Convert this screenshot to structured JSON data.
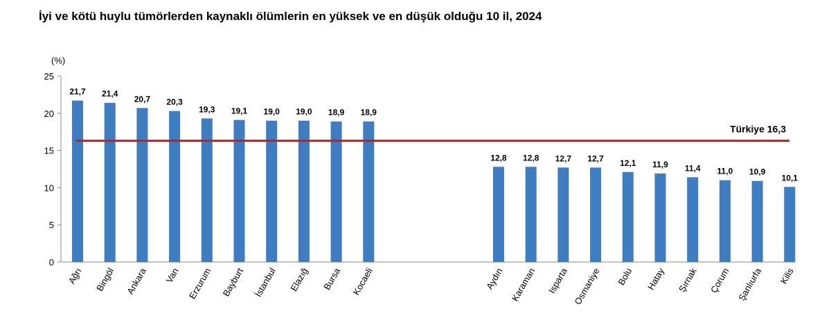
{
  "title": "İyi ve kötü huylu tümörlerden kaynaklı ölümlerin en yüksek ve en düşük olduğu 10 il, 2024",
  "colors": {
    "bar": "#3E7DC1",
    "reference_line": "#A52A2A",
    "axis": "#888888"
  },
  "chart_data": {
    "type": "bar",
    "title": "İyi ve kötü huylu tümörlerden kaynaklı ölümlerin en yüksek ve en düşük olduğu 10 il, 2024",
    "ylabel": "(%)",
    "ylim": [
      0,
      25
    ],
    "yticks": [
      0,
      5,
      10,
      15,
      20,
      25
    ],
    "grid": false,
    "groups": [
      {
        "categories": [
          "Ağrı",
          "Bingöl",
          "Ankara",
          "Van",
          "Erzurum",
          "Bayburt",
          "İstanbul",
          "Elazığ",
          "Bursa",
          "Kocaeli"
        ],
        "values": [
          21.7,
          21.4,
          20.7,
          20.3,
          19.3,
          19.1,
          19.0,
          19.0,
          18.9,
          18.9
        ],
        "labels": [
          "21,7",
          "21,4",
          "20,7",
          "20,3",
          "19,3",
          "19,1",
          "19,0",
          "19,0",
          "18,9",
          "18,9"
        ]
      },
      {
        "categories": [
          "Aydın",
          "Karaman",
          "Isparta",
          "Osmaniye",
          "Bolu",
          "Hatay",
          "Şırnak",
          "Çorum",
          "Şanlıurfa",
          "Kilis"
        ],
        "values": [
          12.8,
          12.8,
          12.7,
          12.7,
          12.1,
          11.9,
          11.4,
          11.0,
          10.9,
          10.1
        ],
        "labels": [
          "12,8",
          "12,8",
          "12,7",
          "12,7",
          "12,1",
          "11,9",
          "11,4",
          "11,0",
          "10,9",
          "10,1"
        ]
      }
    ],
    "reference_line": {
      "value": 16.3,
      "label": "Türkiye 16,3"
    }
  }
}
